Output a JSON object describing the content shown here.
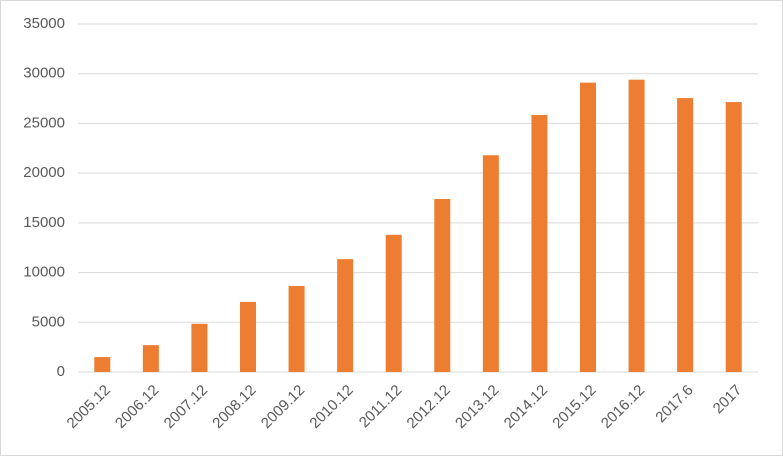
{
  "chart_data": {
    "type": "bar",
    "categories": [
      "2005.12",
      "2006.12",
      "2007.12",
      "2008.12",
      "2009.12",
      "2010.12",
      "2011.12",
      "2012.12",
      "2013.12",
      "2014.12",
      "2015.12",
      "2016.12",
      "2017.6",
      "2017"
    ],
    "values": [
      1500,
      2700,
      4850,
      7050,
      8650,
      11350,
      13800,
      17400,
      21800,
      25850,
      29100,
      29400,
      27550,
      27150
    ],
    "color": "#ed7d31",
    "ylim": [
      0,
      35000
    ],
    "yticks": [
      0,
      5000,
      10000,
      15000,
      20000,
      25000,
      30000,
      35000
    ],
    "grid": true
  }
}
